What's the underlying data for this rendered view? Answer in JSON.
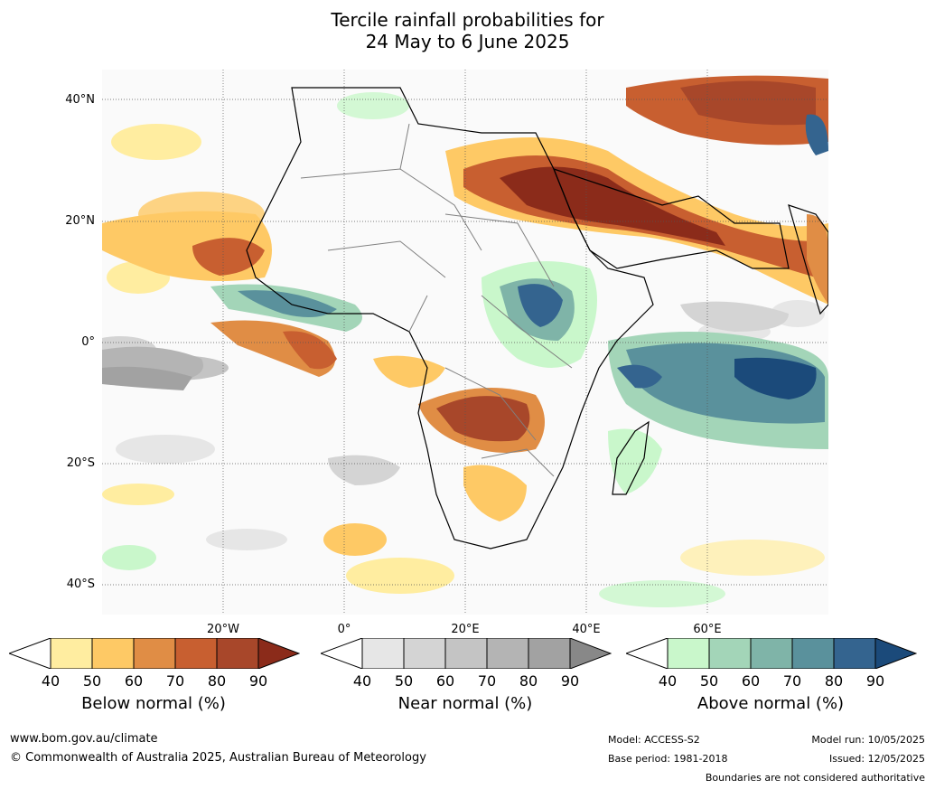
{
  "title": {
    "line1": "Tercile rainfall probabilities for",
    "line2": "24 May to 6 June 2025"
  },
  "map": {
    "lat_labels": [
      "40°N",
      "20°N",
      "0°",
      "20°S",
      "40°S"
    ],
    "lon_labels": [
      "20°W",
      "0°",
      "20°E",
      "40°E",
      "60°E"
    ],
    "grid": true
  },
  "colorbars": [
    {
      "label": "Below normal (%)",
      "ticks": [
        "40",
        "50",
        "60",
        "70",
        "80",
        "90"
      ],
      "colors": [
        "#ffffff",
        "#ffeda0",
        "#fec965",
        "#e08d45",
        "#c85f30",
        "#a8472a",
        "#8b2b1a"
      ]
    },
    {
      "label": "Near normal (%)",
      "ticks": [
        "40",
        "50",
        "60",
        "70",
        "80",
        "90"
      ],
      "colors": [
        "#ffffff",
        "#e6e6e6",
        "#d4d4d4",
        "#c4c4c4",
        "#b4b4b4",
        "#a2a2a2",
        "#888888"
      ]
    },
    {
      "label": "Above normal (%)",
      "ticks": [
        "40",
        "50",
        "60",
        "70",
        "80",
        "90"
      ],
      "colors": [
        "#ffffff",
        "#c9f7cb",
        "#a3d5b8",
        "#7fb4a8",
        "#5a919c",
        "#34648f",
        "#1b4a7a"
      ]
    }
  ],
  "footer": {
    "url": "www.bom.gov.au/climate",
    "copyright": "© Commonwealth of Australia 2025, Australian Bureau of Meteorology",
    "model": "Model: ACCESS-S2",
    "base_period": "Base period: 1981-2018",
    "model_run": "Model run: 10/05/2025",
    "issued": "Issued: 12/05/2025",
    "disclaimer": "Boundaries are not considered authoritative"
  }
}
